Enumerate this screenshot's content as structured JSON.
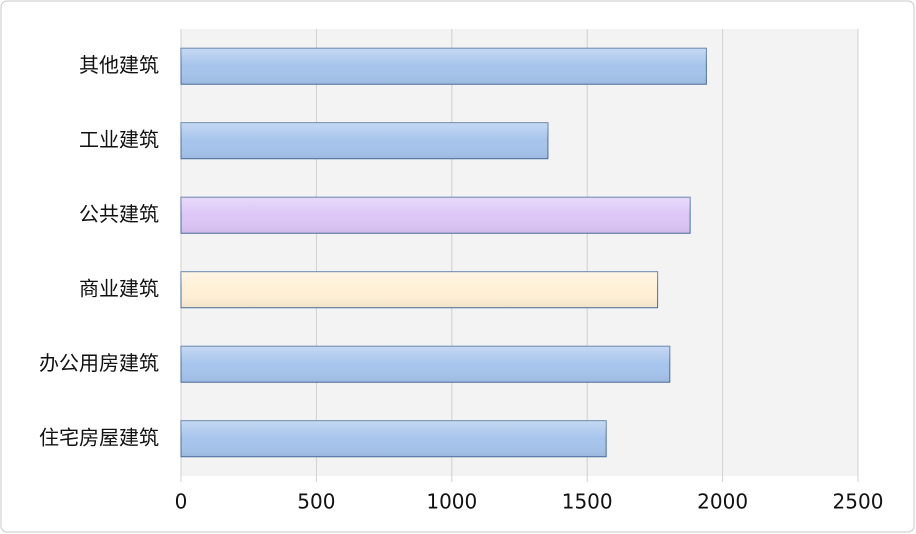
{
  "chart_data": {
    "type": "barh",
    "categories": [
      "其他建筑",
      "工业建筑",
      "公共建筑",
      "商业建筑",
      "办公用房建筑",
      "住宅房屋建筑"
    ],
    "values": [
      1940,
      1355,
      1880,
      1760,
      1805,
      1570
    ],
    "colors": [
      "#a6c4ec",
      "#a6c4ec",
      "#dcc6f7",
      "#fff0d6",
      "#a6c4ec",
      "#a6c4ec"
    ],
    "xlim": [
      0,
      2500
    ],
    "xticks": [
      0,
      500,
      1000,
      1500,
      2000,
      2500
    ],
    "grid": true
  }
}
